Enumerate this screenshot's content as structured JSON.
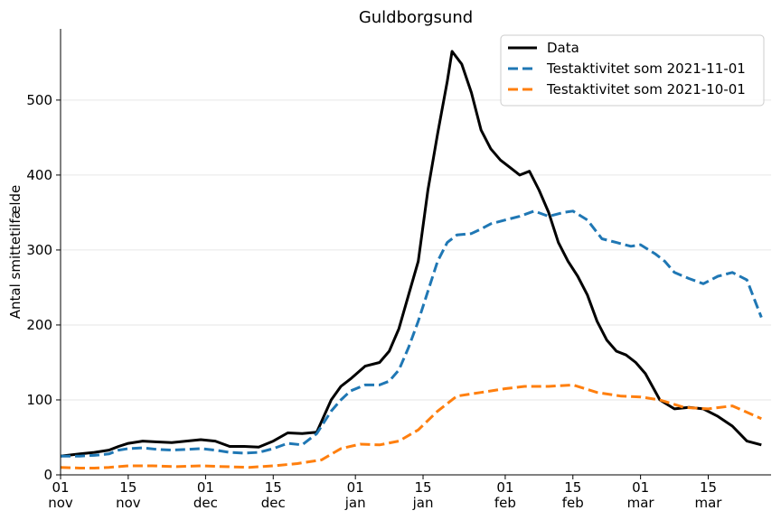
{
  "chart_data": {
    "type": "line",
    "title": "Guldborgsund",
    "xlabel": "",
    "ylabel": "Antal smittetilfælde",
    "x_range": [
      "2021-11-01",
      "2022-03-28"
    ],
    "ylim": [
      0,
      595
    ],
    "grid": "horizontal",
    "legend_position": "top-right",
    "x_ticks": [
      {
        "date": "2021-11-01",
        "day": "01",
        "month": "nov"
      },
      {
        "date": "2021-11-15",
        "day": "15",
        "month": "nov"
      },
      {
        "date": "2021-12-01",
        "day": "01",
        "month": "dec"
      },
      {
        "date": "2021-12-15",
        "day": "15",
        "month": "dec"
      },
      {
        "date": "2022-01-01",
        "day": "01",
        "month": "jan"
      },
      {
        "date": "2022-01-15",
        "day": "15",
        "month": "jan"
      },
      {
        "date": "2022-02-01",
        "day": "01",
        "month": "feb"
      },
      {
        "date": "2022-02-15",
        "day": "15",
        "month": "feb"
      },
      {
        "date": "2022-03-01",
        "day": "01",
        "month": "mar"
      },
      {
        "date": "2022-03-15",
        "day": "15",
        "month": "mar"
      }
    ],
    "y_ticks": [
      0,
      100,
      200,
      300,
      400,
      500
    ],
    "series": [
      {
        "name": "Data",
        "color": "#000000",
        "dash": "solid",
        "x": [
          "2021-11-01",
          "2021-11-05",
          "2021-11-08",
          "2021-11-11",
          "2021-11-13",
          "2021-11-15",
          "2021-11-18",
          "2021-11-21",
          "2021-11-24",
          "2021-11-27",
          "2021-11-30",
          "2021-12-03",
          "2021-12-06",
          "2021-12-09",
          "2021-12-12",
          "2021-12-15",
          "2021-12-18",
          "2021-12-21",
          "2021-12-24",
          "2021-12-27",
          "2021-12-29",
          "2021-12-31",
          "2022-01-03",
          "2022-01-06",
          "2022-01-08",
          "2022-01-10",
          "2022-01-12",
          "2022-01-14",
          "2022-01-16",
          "2022-01-18",
          "2022-01-20",
          "2022-01-21",
          "2022-01-23",
          "2022-01-25",
          "2022-01-27",
          "2022-01-29",
          "2022-01-31",
          "2022-02-02",
          "2022-02-04",
          "2022-02-06",
          "2022-02-08",
          "2022-02-10",
          "2022-02-12",
          "2022-02-14",
          "2022-02-16",
          "2022-02-18",
          "2022-02-20",
          "2022-02-22",
          "2022-02-24",
          "2022-02-26",
          "2022-02-28",
          "2022-03-02",
          "2022-03-05",
          "2022-03-08",
          "2022-03-11",
          "2022-03-14",
          "2022-03-17",
          "2022-03-20",
          "2022-03-23",
          "2022-03-26"
        ],
        "values": [
          25,
          28,
          30,
          33,
          38,
          42,
          45,
          44,
          43,
          45,
          47,
          45,
          38,
          38,
          37,
          45,
          56,
          55,
          57,
          100,
          118,
          128,
          145,
          150,
          165,
          195,
          240,
          285,
          380,
          455,
          525,
          565,
          548,
          510,
          460,
          435,
          420,
          410,
          400,
          405,
          380,
          350,
          310,
          285,
          265,
          240,
          205,
          180,
          165,
          160,
          150,
          135,
          100,
          88,
          90,
          88,
          78,
          65,
          45,
          40
        ]
      },
      {
        "name": "Testaktivitet som 2021-11-01",
        "color": "#1f77b4",
        "dash": "dashed",
        "x": [
          "2021-11-01",
          "2021-11-05",
          "2021-11-08",
          "2021-11-11",
          "2021-11-13",
          "2021-11-15",
          "2021-11-18",
          "2021-11-21",
          "2021-11-24",
          "2021-11-27",
          "2021-11-30",
          "2021-12-03",
          "2021-12-06",
          "2021-12-09",
          "2021-12-12",
          "2021-12-15",
          "2021-12-18",
          "2021-12-21",
          "2021-12-24",
          "2021-12-27",
          "2021-12-29",
          "2021-12-31",
          "2022-01-03",
          "2022-01-06",
          "2022-01-08",
          "2022-01-10",
          "2022-01-12",
          "2022-01-14",
          "2022-01-16",
          "2022-01-18",
          "2022-01-20",
          "2022-01-22",
          "2022-01-25",
          "2022-01-27",
          "2022-01-29",
          "2022-02-01",
          "2022-02-04",
          "2022-02-07",
          "2022-02-10",
          "2022-02-13",
          "2022-02-15",
          "2022-02-18",
          "2022-02-21",
          "2022-02-24",
          "2022-02-27",
          "2022-03-01",
          "2022-03-04",
          "2022-03-06",
          "2022-03-08",
          "2022-03-11",
          "2022-03-14",
          "2022-03-17",
          "2022-03-20",
          "2022-03-23",
          "2022-03-26"
        ],
        "values": [
          25,
          25,
          26,
          28,
          33,
          35,
          36,
          34,
          33,
          34,
          35,
          33,
          30,
          29,
          30,
          35,
          42,
          40,
          55,
          85,
          100,
          112,
          120,
          120,
          125,
          140,
          170,
          205,
          245,
          285,
          310,
          320,
          322,
          328,
          335,
          340,
          345,
          352,
          345,
          350,
          352,
          340,
          315,
          310,
          305,
          307,
          295,
          285,
          270,
          262,
          255,
          265,
          270,
          260,
          210
        ]
      },
      {
        "name": "Testaktivitet som 2021-10-01",
        "color": "#ff7f0e",
        "dash": "dashed",
        "x": [
          "2021-11-01",
          "2021-11-05",
          "2021-11-08",
          "2021-11-11",
          "2021-11-15",
          "2021-11-20",
          "2021-11-25",
          "2021-11-30",
          "2021-12-05",
          "2021-12-10",
          "2021-12-15",
          "2021-12-20",
          "2021-12-25",
          "2021-12-29",
          "2022-01-02",
          "2022-01-06",
          "2022-01-10",
          "2022-01-14",
          "2022-01-18",
          "2022-01-22",
          "2022-01-27",
          "2022-02-01",
          "2022-02-05",
          "2022-02-10",
          "2022-02-15",
          "2022-02-20",
          "2022-02-25",
          "2022-03-01",
          "2022-03-05",
          "2022-03-10",
          "2022-03-15",
          "2022-03-20",
          "2022-03-26"
        ],
        "values": [
          10,
          9,
          9,
          10,
          12,
          12,
          11,
          12,
          11,
          10,
          12,
          15,
          20,
          35,
          41,
          40,
          45,
          60,
          85,
          105,
          110,
          115,
          118,
          118,
          120,
          110,
          105,
          104,
          100,
          90,
          88,
          92,
          75
        ]
      }
    ]
  }
}
